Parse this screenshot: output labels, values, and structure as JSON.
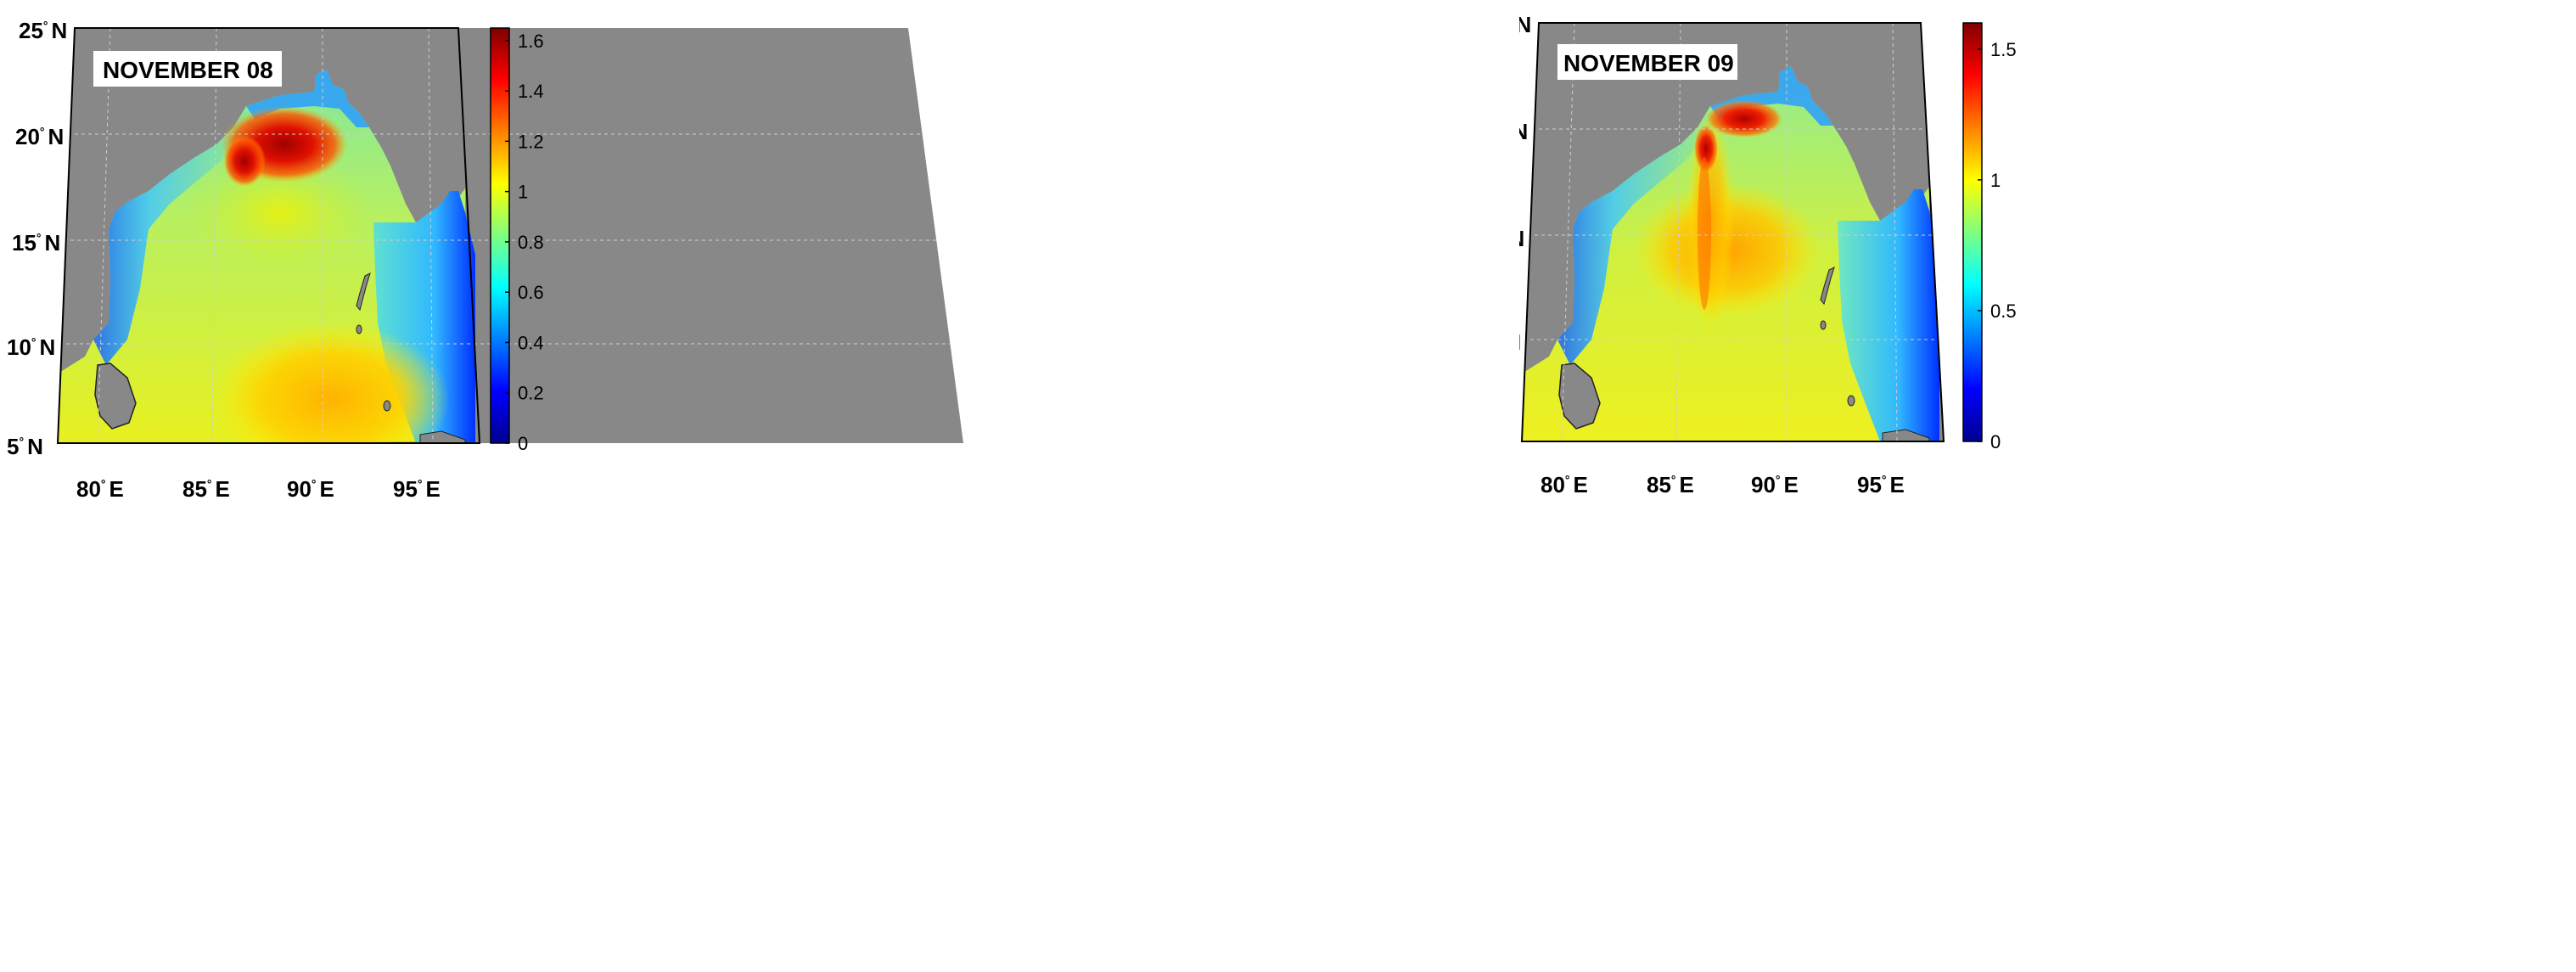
{
  "colors": {
    "land": "#888888",
    "frame": "#000000",
    "colormap": "jet",
    "grid": "#bbbbbb"
  },
  "axes": {
    "lat_labels": [
      "25",
      "20",
      "15",
      "10",
      "5"
    ],
    "lat_suffix": "N",
    "lon_labels": [
      "80",
      "85",
      "90",
      "95"
    ],
    "lon_suffix": "E",
    "degree_symbol": "°"
  },
  "panels": [
    {
      "title": "NOVEMBER 08",
      "colorbar": {
        "min": 0,
        "max": 1.65,
        "ticks": [
          "1.6",
          "1.4",
          "1.2",
          "1",
          "0.8",
          "0.6",
          "0.4",
          "0.2",
          "0"
        ],
        "tick_values": [
          1.6,
          1.4,
          1.2,
          1.0,
          0.8,
          0.6,
          0.4,
          0.2,
          0.0
        ]
      }
    },
    {
      "title": "NOVEMBER 09",
      "colorbar": {
        "min": 0,
        "max": 1.6,
        "ticks": [
          "1.5",
          "1",
          "0.5",
          "0"
        ],
        "tick_values": [
          1.5,
          1.0,
          0.5,
          0.0
        ]
      }
    }
  ]
}
